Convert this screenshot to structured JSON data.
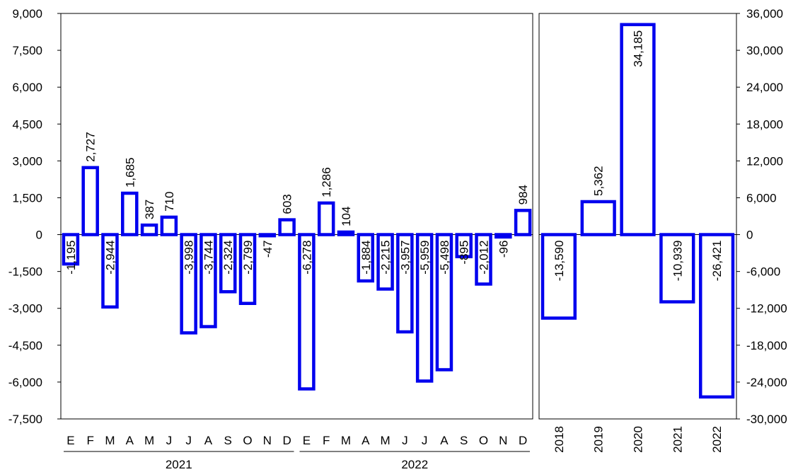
{
  "chart_data": [
    {
      "type": "bar",
      "description": "Monthly values 2021-2022 (left axis)",
      "groups": [
        {
          "label": "2021",
          "categories": [
            "E",
            "F",
            "M",
            "A",
            "M",
            "J",
            "J",
            "A",
            "S",
            "O",
            "N",
            "D"
          ],
          "values": [
            -1195,
            2727,
            -2944,
            1685,
            387,
            710,
            -3998,
            -3744,
            -2324,
            -2799,
            -47,
            603
          ],
          "value_labels": [
            "-1,195",
            "2,727",
            "-2,944",
            "1,685",
            "387",
            "710",
            "-3,998",
            "-3,744",
            "-2,324",
            "-2,799",
            "-47",
            "603"
          ]
        },
        {
          "label": "2022",
          "categories": [
            "E",
            "F",
            "M",
            "A",
            "M",
            "J",
            "J",
            "A",
            "S",
            "O",
            "N",
            "D"
          ],
          "values": [
            -6278,
            1286,
            104,
            -1884,
            -2215,
            -3957,
            -5959,
            -5498,
            -895,
            -2012,
            -96,
            984
          ],
          "value_labels": [
            "-6,278",
            "1,286",
            "104",
            "-1,884",
            "-2,215",
            "-3,957",
            "-5,959",
            "-5,498",
            "-895",
            "-2,012",
            "-96",
            "984"
          ]
        }
      ],
      "ylim": [
        -7500,
        9000
      ],
      "yticks": [
        "9,000",
        "7,500",
        "6,000",
        "4,500",
        "3,000",
        "1,500",
        "0",
        "-1,500",
        "-3,000",
        "-4,500",
        "-6,000",
        "-7,500"
      ],
      "grid": false,
      "bar_color": "#0000ee"
    },
    {
      "type": "bar",
      "description": "Annual values (right axis)",
      "categories": [
        "2018",
        "2019",
        "2020",
        "2021",
        "2022"
      ],
      "values": [
        -13590,
        5362,
        34185,
        -10939,
        -26421
      ],
      "value_labels": [
        "-13,590",
        "5,362",
        "34,185",
        "-10,939",
        "-26,421"
      ],
      "ylim": [
        -30000,
        36000
      ],
      "yticks": [
        "36,000",
        "30,000",
        "24,000",
        "18,000",
        "12,000",
        "6,000",
        "0",
        "-6,000",
        "-12,000",
        "-18,000",
        "-24,000",
        "-30,000"
      ],
      "grid": false,
      "bar_color": "#0000ee"
    }
  ]
}
